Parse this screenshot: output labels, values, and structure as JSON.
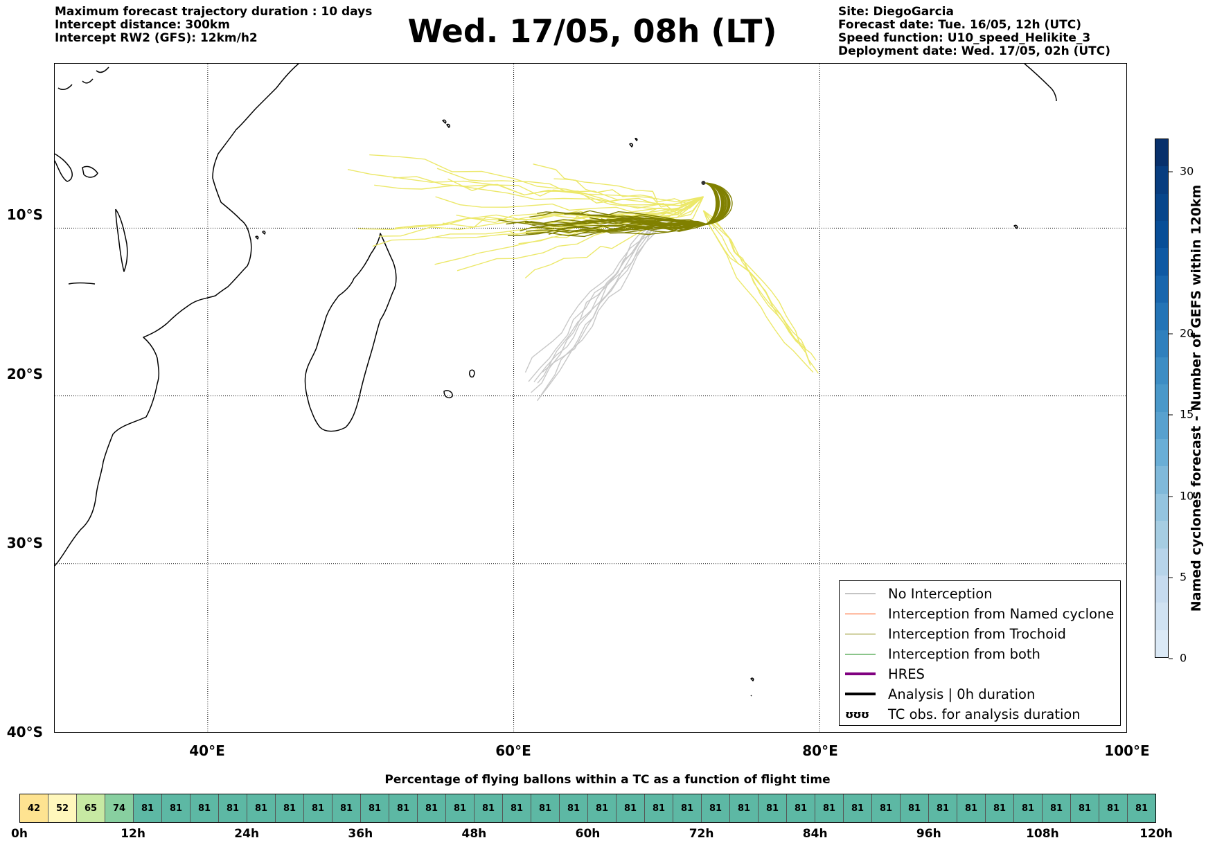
{
  "header": {
    "left_lines": [
      "Maximum forecast trajectory duration : 10 days",
      "Intercept distance: 300km",
      "Intercept RW2 (GFS):  12km/h2"
    ],
    "title": "Wed. 17/05, 08h (LT)",
    "right_lines": [
      "Site: DiegoGarcia",
      "Forecast date: Tue. 16/05, 12h (UTC)",
      "Speed function: U10_speed_Helikite_3",
      "Deployment date: Wed. 17/05, 02h (UTC)"
    ]
  },
  "map": {
    "lon_range": [
      30,
      100
    ],
    "lat_range": [
      -40,
      -0.2
    ],
    "lat_labels": [
      {
        "lat": -10,
        "text": "10°S"
      },
      {
        "lat": -20,
        "text": "20°S"
      },
      {
        "lat": -30,
        "text": "30°S"
      },
      {
        "lat": -40,
        "text": "40°S"
      }
    ],
    "lon_labels": [
      {
        "lon": 40,
        "text": "40°E"
      },
      {
        "lon": 60,
        "text": "60°E"
      },
      {
        "lon": 80,
        "text": "80°E"
      },
      {
        "lon": 100,
        "text": "100°E"
      }
    ],
    "grid_lats": [
      -10,
      -20,
      -30
    ],
    "grid_lons": [
      40,
      60,
      80
    ],
    "site": {
      "name": "DiegoGarcia",
      "lon": 72.4,
      "lat": -7.3
    },
    "colors": {
      "no_interception": "#c8c8c8",
      "trochoid": "#808000",
      "yellow_members": "#ece86a",
      "coast": "#000000"
    }
  },
  "legend": {
    "items": [
      {
        "label": "No Interception",
        "color": "#808080",
        "width": 1.5,
        "type": "line"
      },
      {
        "label": "Interception from Named cyclone",
        "color": "#ff4500",
        "width": 1.5,
        "type": "line"
      },
      {
        "label": "Interception from Trochoid",
        "color": "#808000",
        "width": 1.5,
        "type": "line"
      },
      {
        "label": "Interception from both",
        "color": "#008000",
        "width": 1.5,
        "type": "line"
      },
      {
        "label": "HRES",
        "color": "#800080",
        "width": 4,
        "type": "line"
      },
      {
        "label": "Analysis | 0h duration",
        "color": "#000000",
        "width": 4,
        "type": "line"
      },
      {
        "label": "TC obs. for analysis duration",
        "glyph": "ʊʊʊ",
        "type": "glyph"
      }
    ]
  },
  "colorbar": {
    "label": "Named cyclones forecast - Number of GEFS within 120km",
    "min": 0,
    "max": 32,
    "ticks": [
      0,
      5,
      10,
      15,
      20,
      30
    ],
    "colors": [
      "#dbe9f6",
      "#d0e2f2",
      "#c6dbef",
      "#b7d4ea",
      "#a6cde2",
      "#94c4df",
      "#80b9da",
      "#6aaed6",
      "#58a1cf",
      "#4a98c9",
      "#3d8dc4",
      "#3080bd",
      "#2474b6",
      "#1966ad",
      "#0f59a3",
      "#084e97",
      "#08468b",
      "#083d7f",
      "#08306b"
    ]
  },
  "percentage": {
    "title": "Percentage of flying ballons within a TC as a function of flight time",
    "cells": [
      42,
      52,
      65,
      74,
      81,
      81,
      81,
      81,
      81,
      81,
      81,
      81,
      81,
      81,
      81,
      81,
      81,
      81,
      81,
      81,
      81,
      81,
      81,
      81,
      81,
      81,
      81,
      81,
      81,
      81,
      81,
      81,
      81,
      81,
      81,
      81,
      81,
      81,
      81,
      81
    ],
    "cell_colors": {
      "42": "#fee391",
      "52": "#fff7bc",
      "65": "#c7e9a3",
      "74": "#88cfa0",
      "81": "#5db8a4"
    },
    "ticks": [
      "0h",
      "12h",
      "24h",
      "36h",
      "48h",
      "60h",
      "72h",
      "84h",
      "96h",
      "108h",
      "120h"
    ]
  }
}
